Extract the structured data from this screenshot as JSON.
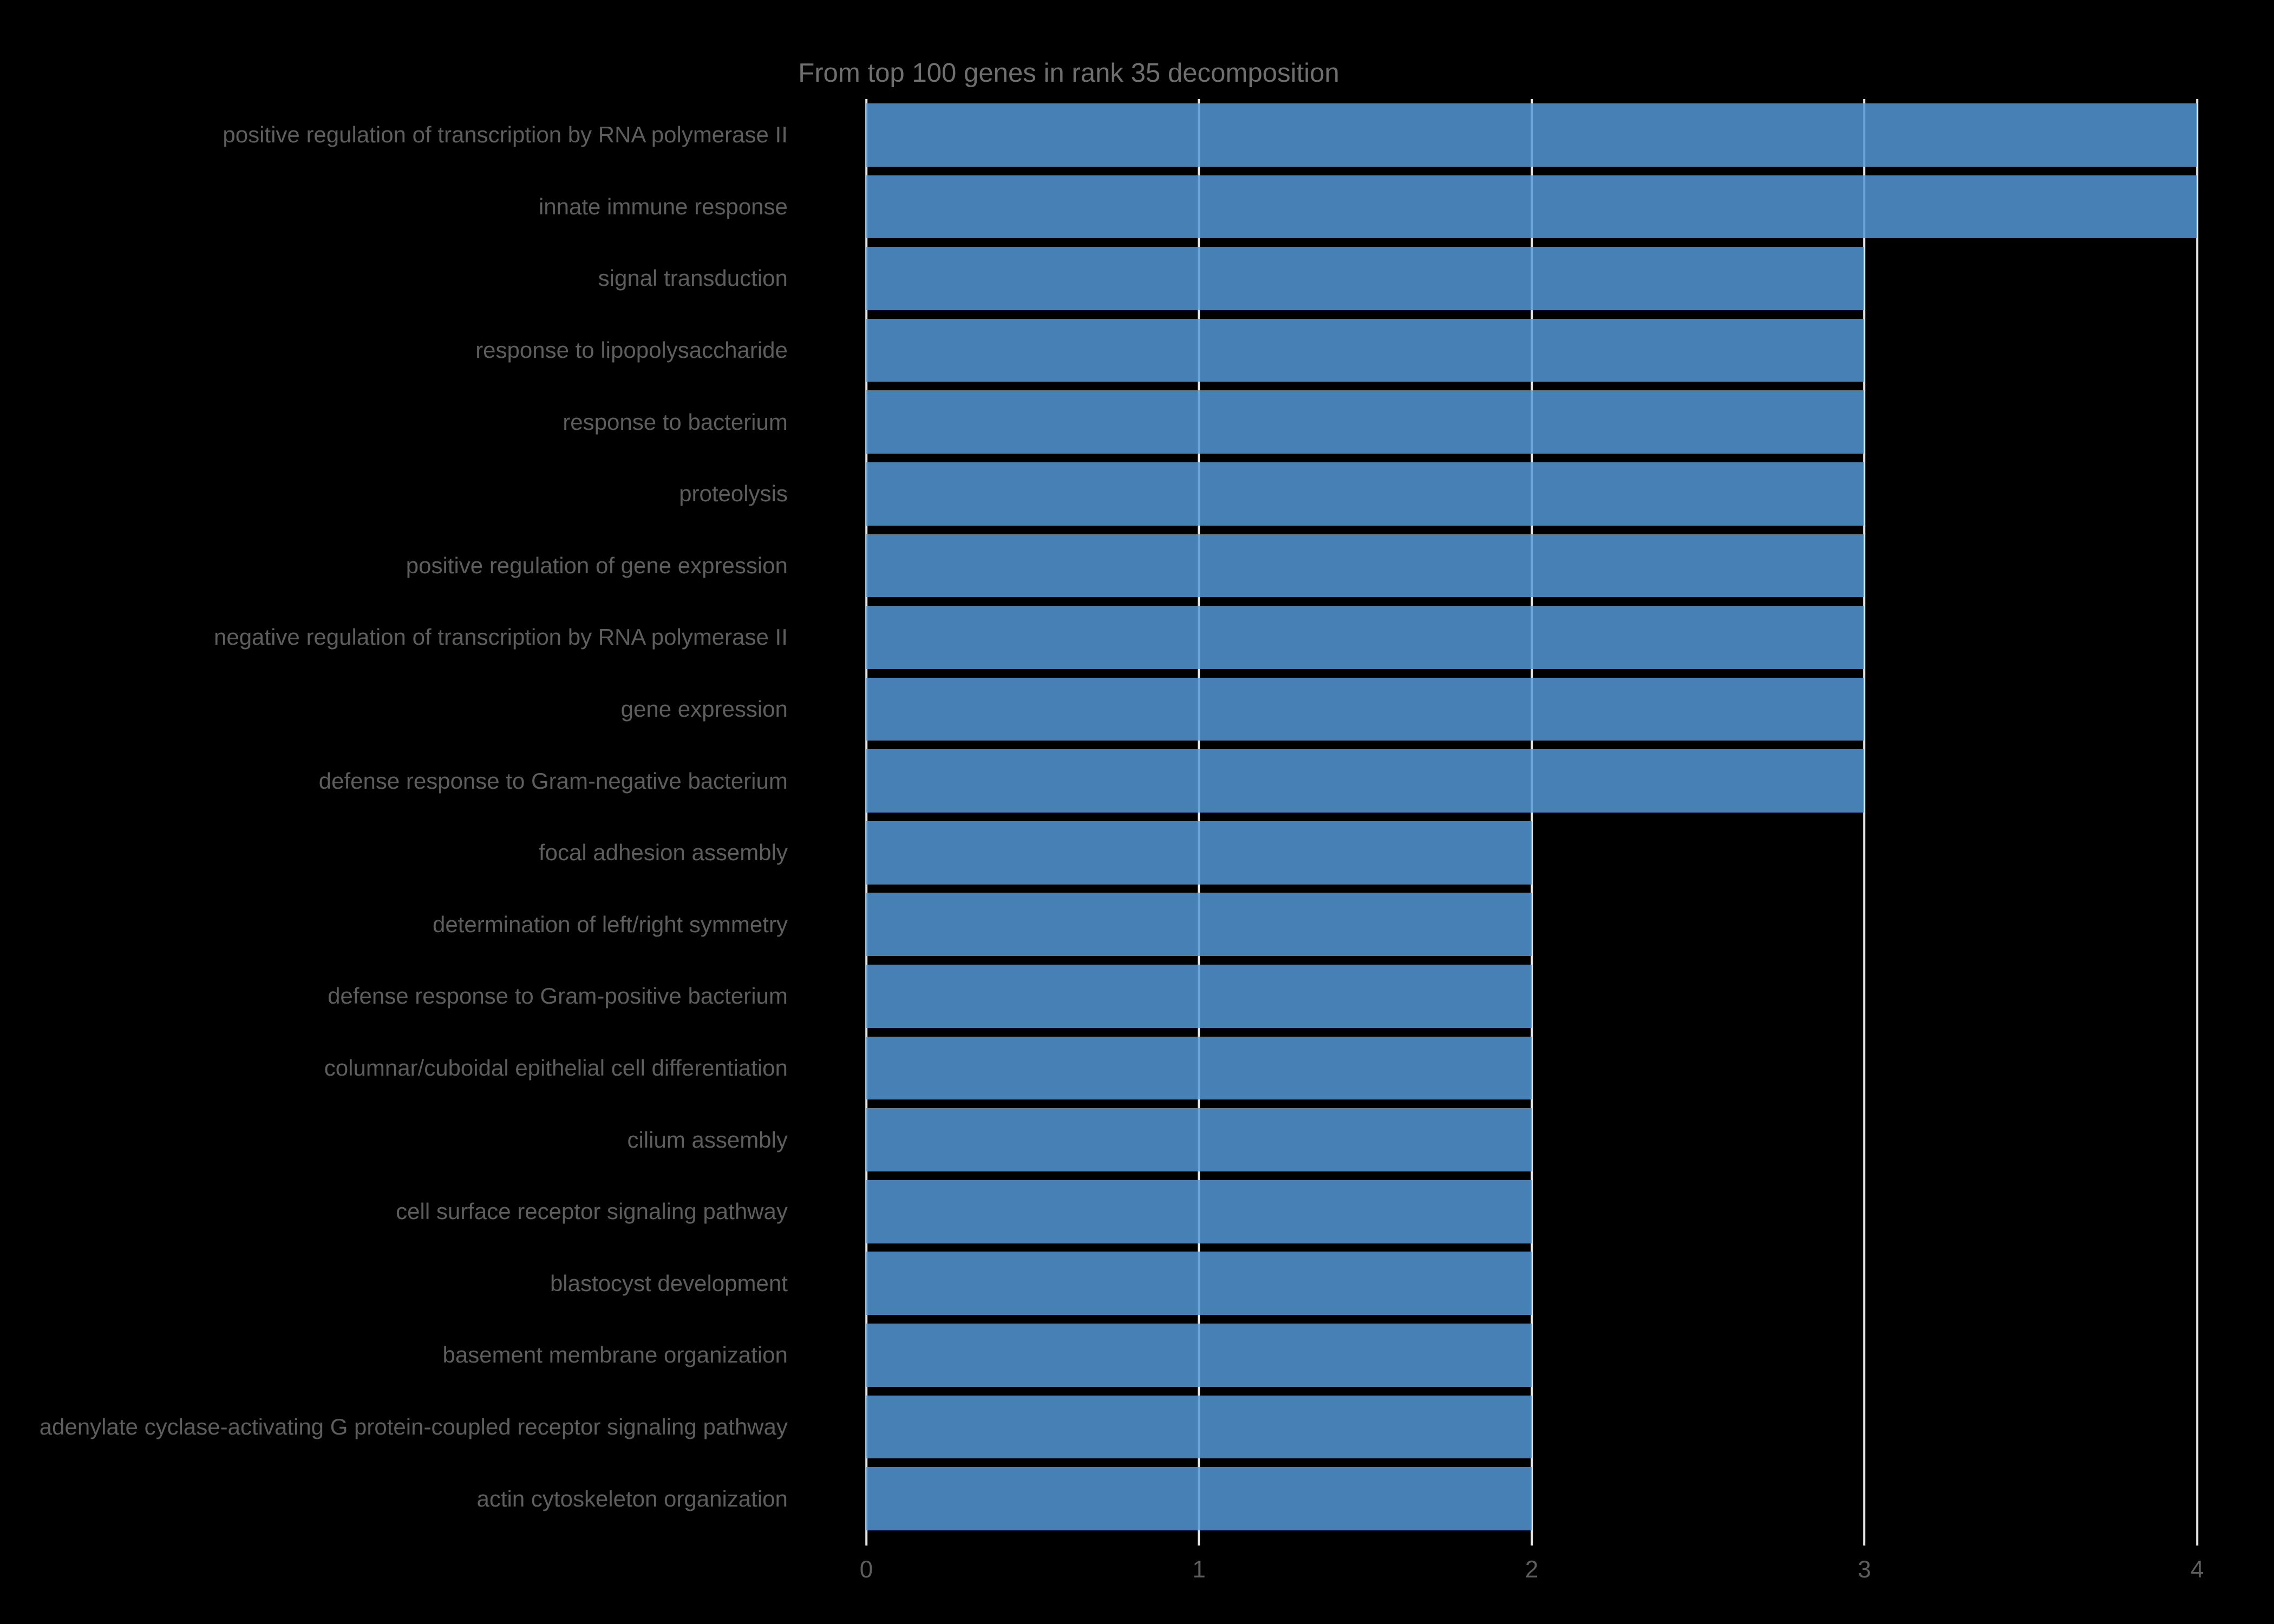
{
  "chart_data": {
    "type": "bar",
    "orientation": "horizontal",
    "title": "From top 100 genes in rank 35 decomposition",
    "xlabel": "",
    "ylabel": "",
    "categories": [
      "positive regulation of transcription by RNA polymerase II",
      "innate immune response",
      "signal transduction",
      "response to lipopolysaccharide",
      "response to bacterium",
      "proteolysis",
      "positive regulation of gene expression",
      "negative regulation of transcription by RNA polymerase II",
      "gene expression",
      "defense response to Gram-negative bacterium",
      "focal adhesion assembly",
      "determination of left/right symmetry",
      "defense response to Gram-positive bacterium",
      "columnar/cuboidal epithelial cell differentiation",
      "cilium assembly",
      "cell surface receptor signaling pathway",
      "blastocyst development",
      "basement membrane organization",
      "adenylate cyclase-activating G protein-coupled receptor signaling pathway",
      "actin cytoskeleton organization"
    ],
    "values": [
      4,
      4,
      3,
      3,
      3,
      3,
      3,
      3,
      3,
      3,
      2,
      2,
      2,
      2,
      2,
      2,
      2,
      2,
      2,
      2
    ],
    "xticks": [
      0,
      1,
      2,
      3,
      4
    ],
    "xlim": [
      0,
      4.2
    ],
    "grid": true,
    "legend_position": "none",
    "colors": {
      "background": "#000000",
      "bar": "#5399D6",
      "bar_alpha": 0.84,
      "bar_rendered": "#4682B4",
      "gridline": "#e6e6e6",
      "title_text": "#6f6f6f",
      "category_text": "#5e5e5e",
      "tick_text": "#5e5e5e"
    }
  }
}
